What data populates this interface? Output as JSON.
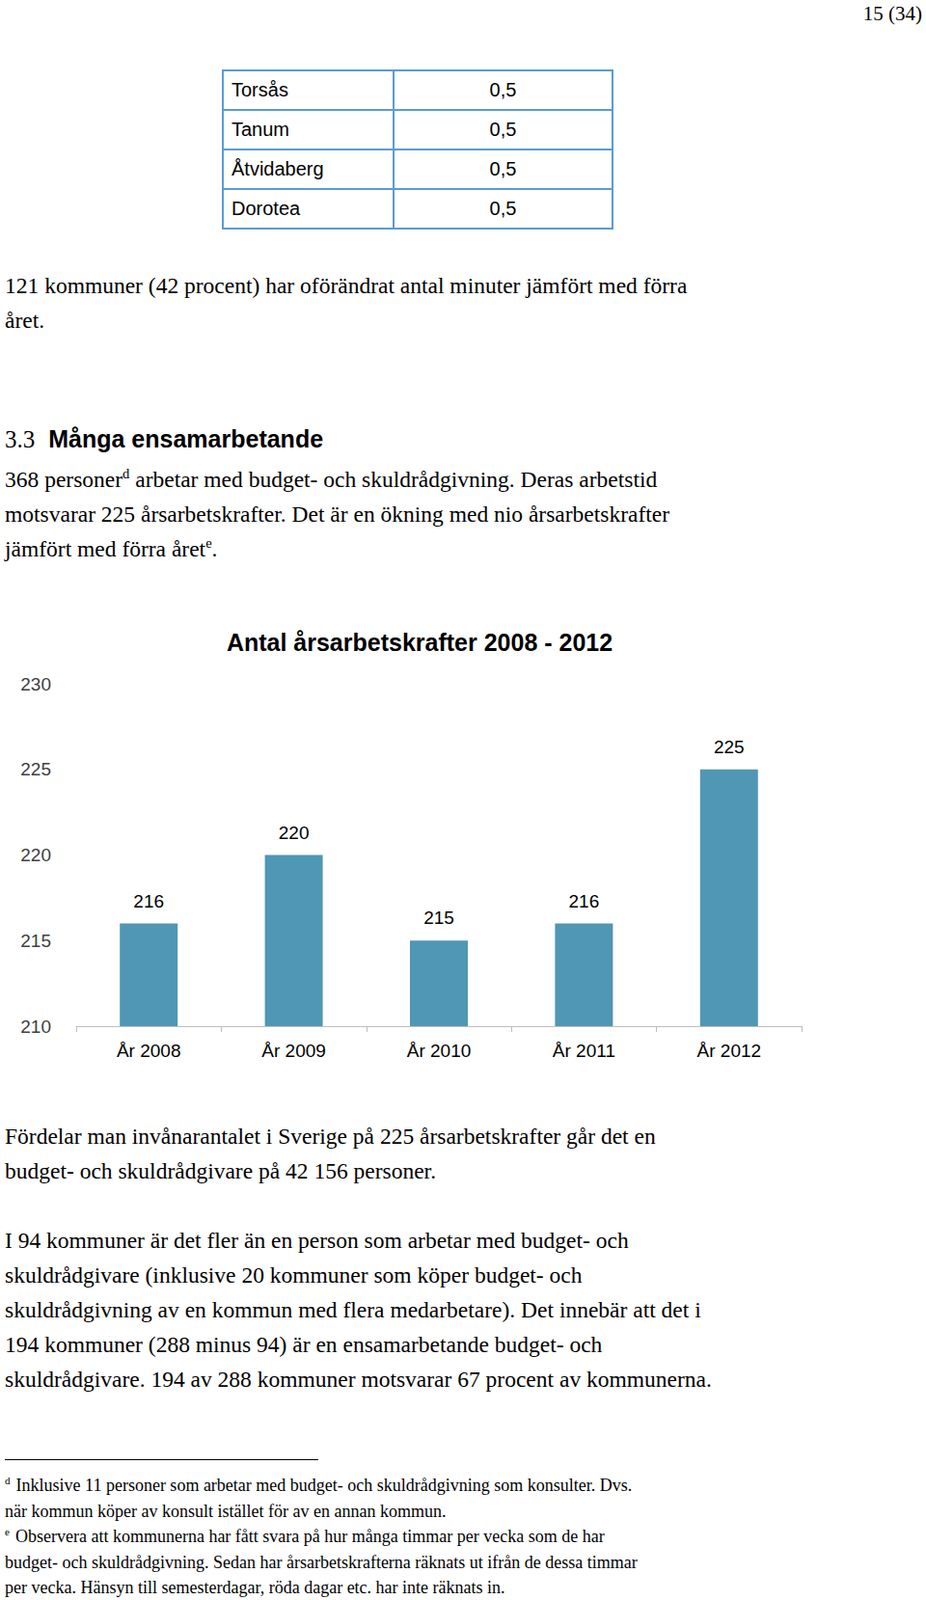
{
  "page_number": "15 (34)",
  "table": {
    "rows": [
      [
        "Torsås",
        "0,5"
      ],
      [
        "Tanum",
        "0,5"
      ],
      [
        "Åtvidaberg",
        "0,5"
      ],
      [
        "Dorotea",
        "0,5"
      ]
    ]
  },
  "paragraph_1": {
    "lines": [
      [
        "121 kommuner (42 procent) har oförändrat antal minuter jämfört med förra"
      ],
      [
        "året."
      ]
    ]
  },
  "heading": {
    "number": "3.3",
    "text": "Många ensamarbetande"
  },
  "paragraph_2": {
    "lines": [
      [
        "368 personer",
        {
          "sup": "d"
        },
        " arbetar med budget- och skuldrådgivning. Deras arbetstid"
      ],
      [
        "motsvarar 225 årsarbetskrafter. Det är en ökning med nio årsarbetskrafter"
      ],
      [
        "jämfört med förra året",
        {
          "sup": "e"
        },
        "."
      ]
    ]
  },
  "chart_data": {
    "type": "bar",
    "title": "Antal årsarbetskrafter 2008 - 2012",
    "categories": [
      "År 2008",
      "År 2009",
      "År 2010",
      "År 2011",
      "År 2012"
    ],
    "values": [
      216,
      220,
      215,
      216,
      225
    ],
    "color": "#4f97b4",
    "ylim": [
      210,
      230
    ],
    "yticks": [
      210,
      215,
      220,
      225,
      230
    ],
    "grid": false,
    "data_labels": true
  },
  "paragraph_3": {
    "lines": [
      [
        "Fördelar man invånarantalet i Sverige på 225 årsarbetskrafter går det en"
      ],
      [
        "budget- och skuldrådgivare på 42 156 personer."
      ]
    ]
  },
  "paragraph_4": {
    "lines": [
      [
        "I 94 kommuner är det fler än en person som arbetar med budget- och"
      ],
      [
        "skuldrådgivare (inklusive 20 kommuner som köper budget- och"
      ],
      [
        "skuldrådgivning av en kommun med flera medarbetare). Det innebär att det i"
      ],
      [
        "194 kommuner (288 minus 94) är en ensamarbetande budget- och"
      ],
      [
        "skuldrådgivare. 194 av 288 kommuner motsvarar 67 procent av kommunerna."
      ]
    ]
  },
  "footnotes": [
    {
      "mark": "d",
      "lines": [
        [
          "Inklusive 11 personer som arbetar med budget- och skuldrådgivning som konsulter. Dvs."
        ],
        [
          "när kommun köper av konsult istället för av en annan kommun."
        ]
      ]
    },
    {
      "mark": "e",
      "lines": [
        [
          "Observera att kommunerna har fått svara på hur många timmar per vecka som de har"
        ],
        [
          "budget- och skuldrådgivning. Sedan har årsarbetskrafterna räknats ut ifrån de dessa timmar"
        ],
        [
          "per vecka. Hänsyn till semesterdagar, röda dagar etc. har inte räknats in."
        ]
      ]
    }
  ]
}
